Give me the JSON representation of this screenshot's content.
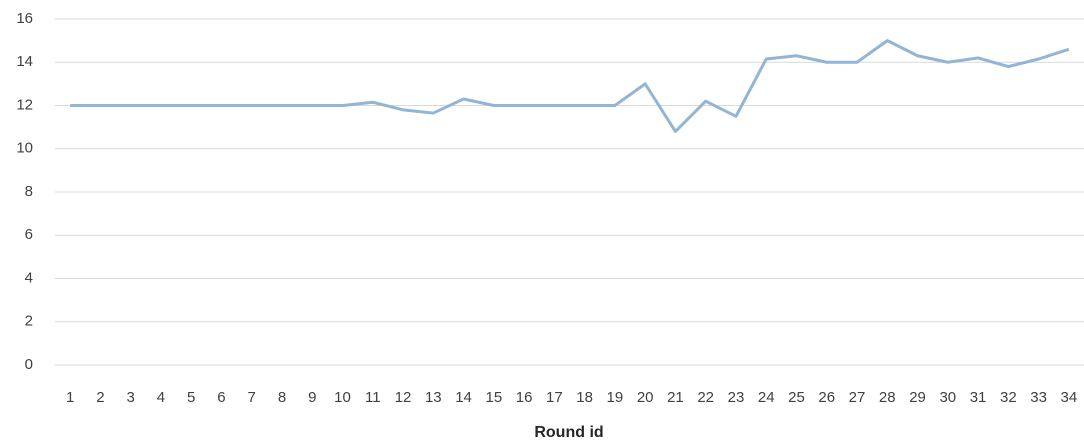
{
  "chart_data": {
    "type": "line",
    "categories": [
      "1",
      "2",
      "3",
      "4",
      "5",
      "6",
      "7",
      "8",
      "9",
      "10",
      "11",
      "12",
      "13",
      "14",
      "15",
      "16",
      "17",
      "18",
      "19",
      "20",
      "21",
      "22",
      "23",
      "24",
      "25",
      "26",
      "27",
      "28",
      "29",
      "30",
      "31",
      "32",
      "33",
      "34"
    ],
    "series": [
      {
        "color": "#92b4d6",
        "values": [
          12,
          12,
          12,
          12,
          12,
          12,
          12,
          12,
          12,
          12,
          12.15,
          11.8,
          11.65,
          12.3,
          12,
          12,
          12,
          12,
          12,
          13,
          10.8,
          12.2,
          11.5,
          14.15,
          14.3,
          14,
          14,
          15,
          14.3,
          14,
          14.2,
          13.8,
          14.15,
          14.6
        ]
      }
    ],
    "x_label": "Round id",
    "ylim": [
      0,
      16
    ],
    "yticks": [
      0,
      2,
      4,
      6,
      8,
      10,
      12,
      14,
      16
    ],
    "grid": true
  }
}
